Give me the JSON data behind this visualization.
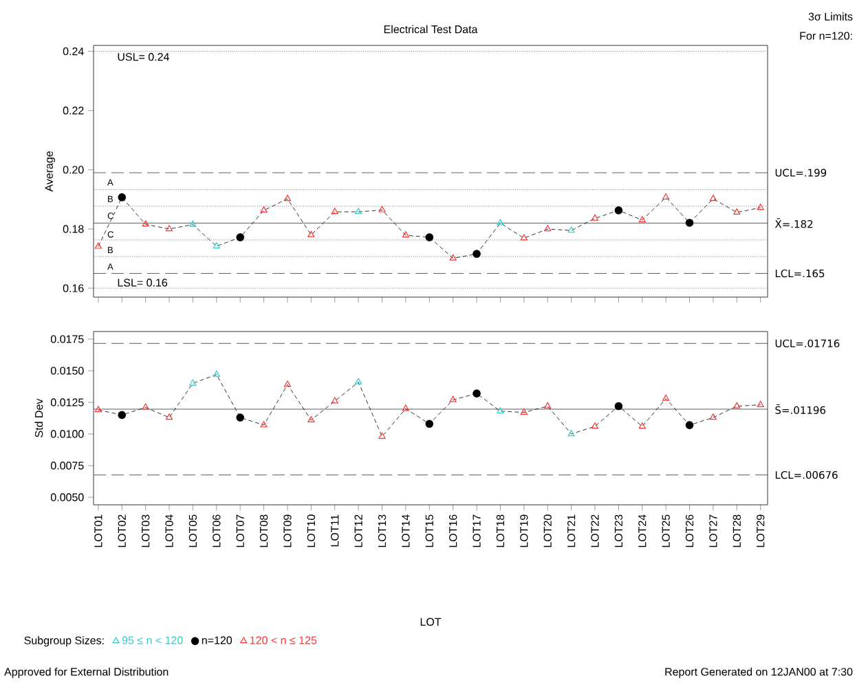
{
  "chart_data": [
    {
      "type": "line",
      "title": "Electrical Test Data",
      "ylabel": "Average",
      "categories": [
        null,
        null,
        null,
        null,
        null,
        null,
        null,
        null,
        null,
        null,
        null,
        null,
        null,
        null,
        null,
        null,
        null,
        null,
        null,
        null,
        null,
        null,
        null,
        null,
        null,
        null,
        null,
        null,
        null
      ],
      "series": [
        {
          "color": "#000000",
          "line_style": "dashed",
          "marker": "none",
          "values": [
            0.1741,
            0.1907,
            0.1816,
            0.18,
            0.1815,
            0.1742,
            0.1772,
            0.1863,
            0.1902,
            0.178,
            0.1858,
            0.1858,
            0.1864,
            0.1779,
            0.1772,
            0.1701,
            0.1716,
            0.182,
            0.1769,
            0.18,
            0.1795,
            0.1836,
            0.1863,
            0.183,
            0.1907,
            0.1821,
            0.1902,
            0.1856,
            0.1872
          ]
        },
        {
          "type": "scatter",
          "color": "#33cccc",
          "marker": "triangle",
          "values": [
            null,
            null,
            null,
            null,
            0.1815,
            0.1742,
            null,
            null,
            null,
            null,
            null,
            0.1858,
            null,
            null,
            null,
            null,
            null,
            0.182,
            null,
            null,
            0.1795,
            null,
            null,
            null,
            null,
            null,
            null,
            null,
            null
          ]
        },
        {
          "type": "scatter",
          "color": "#000000",
          "marker": "circle",
          "values": [
            null,
            0.1907,
            null,
            null,
            null,
            null,
            0.1772,
            null,
            null,
            null,
            null,
            null,
            null,
            null,
            0.1772,
            null,
            0.1716,
            null,
            null,
            null,
            null,
            null,
            0.1863,
            null,
            null,
            0.1821,
            null,
            null,
            null
          ]
        },
        {
          "type": "scatter",
          "color": "#ff3333",
          "marker": "triangle",
          "values": [
            0.1741,
            null,
            0.1816,
            0.18,
            null,
            null,
            null,
            0.1863,
            0.1902,
            0.178,
            0.1858,
            null,
            0.1864,
            0.1779,
            null,
            0.1701,
            null,
            null,
            0.1769,
            0.18,
            null,
            0.1836,
            null,
            0.183,
            0.1907,
            null,
            0.1902,
            0.1856,
            0.1872
          ]
        }
      ],
      "ylim": [
        0.157,
        0.242
      ],
      "yticks": [
        0.16,
        0.18,
        {
          "value": 0.2,
          "label": "0.20"
        },
        0.22,
        0.24
      ],
      "tick_labels": "y",
      "ref_lines": [
        {
          "axis": "y",
          "value": 0.24,
          "label": "USL= 0.24",
          "line_style": "dotted"
        },
        {
          "axis": "y",
          "value": 0.16,
          "label": "LSL= 0.16",
          "line_style": "dotted"
        },
        {
          "axis": "y",
          "value": 0.199,
          "label": "UCL=.199",
          "line_style": "dashed"
        },
        {
          "axis": "y",
          "value": 0.182,
          "label": "X̄=.182",
          "line_style": "solid"
        },
        {
          "axis": "y",
          "value": 0.165,
          "label": "LCL=.165",
          "line_style": "dashed"
        },
        {
          "axis": "y",
          "value": 0.1933,
          "line_style": "dotted"
        },
        {
          "axis": "y",
          "value": 0.1877,
          "line_style": "dotted"
        },
        {
          "axis": "y",
          "value": 0.1763,
          "line_style": "dotted"
        },
        {
          "axis": "y",
          "value": 0.1707,
          "line_style": "dotted"
        }
      ],
      "annotations": [
        "3σ Limits",
        "For n=120:",
        "A",
        "B",
        "C",
        "C",
        "B",
        "A"
      ]
    },
    {
      "type": "line",
      "ylabel": "Std Dev",
      "xlabel": "LOT",
      "legend_title": "Subgroup Sizes:",
      "legend": "bottom",
      "categories": [
        "LOT01",
        "LOT02",
        "LOT03",
        "LOT04",
        "LOT05",
        "LOT06",
        "LOT07",
        "LOT08",
        "LOT09",
        "LOT10",
        "LOT11",
        "LOT12",
        "LOT13",
        "LOT14",
        "LOT15",
        "LOT16",
        "LOT17",
        "LOT18",
        "LOT19",
        "LOT20",
        "LOT21",
        "LOT22",
        "LOT23",
        "LOT24",
        "LOT25",
        "LOT26",
        "LOT27",
        "LOT28",
        "LOT29"
      ],
      "series": [
        {
          "color": "#000000",
          "line_style": "dashed",
          "marker": "none",
          "values": [
            0.0119,
            0.0115,
            0.0121,
            0.0113,
            0.014,
            0.0147,
            0.0113,
            0.0107,
            0.0139,
            0.0111,
            0.0126,
            0.0141,
            0.0098,
            0.012,
            0.0108,
            0.0127,
            0.0132,
            0.0118,
            0.0117,
            0.0122,
            0.01,
            0.0106,
            0.0122,
            0.0106,
            0.0128,
            0.0107,
            0.0113,
            0.0122,
            0.0123
          ]
        },
        {
          "type": "scatter",
          "name": "95 ≤ n < 120",
          "color": "#33cccc",
          "marker": "triangle",
          "values": [
            null,
            null,
            null,
            null,
            0.014,
            0.0147,
            null,
            null,
            null,
            null,
            null,
            0.0141,
            null,
            null,
            null,
            null,
            null,
            0.0118,
            null,
            null,
            0.01,
            null,
            null,
            null,
            null,
            null,
            null,
            null,
            null
          ]
        },
        {
          "type": "scatter",
          "name": "n=120",
          "color": "#000000",
          "marker": "circle",
          "values": [
            null,
            0.0115,
            null,
            null,
            null,
            null,
            0.0113,
            null,
            null,
            null,
            null,
            null,
            null,
            null,
            0.0108,
            null,
            0.0132,
            null,
            null,
            null,
            null,
            null,
            0.0122,
            null,
            null,
            0.0107,
            null,
            null,
            null
          ]
        },
        {
          "type": "scatter",
          "name": "120 < n ≤ 125",
          "color": "#ff3333",
          "marker": "triangle",
          "values": [
            0.0119,
            null,
            0.0121,
            0.0113,
            null,
            null,
            null,
            0.0107,
            0.0139,
            0.0111,
            0.0126,
            null,
            0.0098,
            0.012,
            null,
            0.0127,
            null,
            null,
            0.0117,
            0.0122,
            null,
            0.0106,
            null,
            0.0106,
            0.0128,
            null,
            0.0113,
            0.0122,
            0.0123
          ]
        }
      ],
      "ylim": [
        0.0044,
        0.0181
      ],
      "yticks": [
        {
          "value": 0.005,
          "label": "0.0050"
        },
        {
          "value": 0.0075,
          "label": "0.0075"
        },
        {
          "value": 0.01,
          "label": "0.0100"
        },
        {
          "value": 0.0125,
          "label": "0.0125"
        },
        {
          "value": 0.015,
          "label": "0.0150"
        },
        {
          "value": 0.0175,
          "label": "0.0175"
        }
      ],
      "ref_lines": [
        {
          "axis": "y",
          "value": 0.01716,
          "label": "UCL=.01716",
          "line_style": "dashed"
        },
        {
          "axis": "y",
          "value": 0.01196,
          "label": "S̄=.01196",
          "line_style": "solid"
        },
        {
          "axis": "y",
          "value": 0.00676,
          "label": "LCL=.00676",
          "line_style": "dashed"
        }
      ],
      "annotations": [
        "Approved for External Distribution",
        "Report Generated on 12JAN00 at 7:30"
      ]
    }
  ]
}
